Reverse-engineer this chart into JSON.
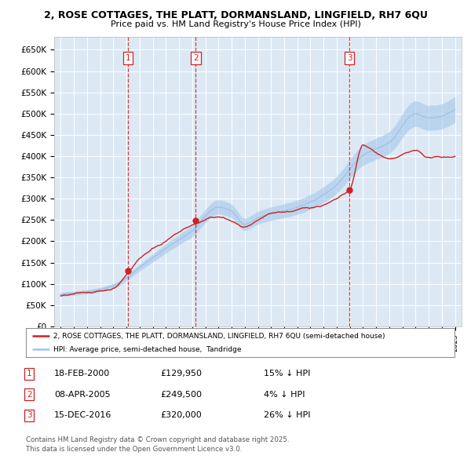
{
  "title1": "2, ROSE COTTAGES, THE PLATT, DORMANSLAND, LINGFIELD, RH7 6QU",
  "title2": "Price paid vs. HM Land Registry's House Price Index (HPI)",
  "background_color": "#ffffff",
  "plot_bg_color": "#dce9f5",
  "grid_color": "#ffffff",
  "hpi_color": "#a0c4e8",
  "price_color": "#cc2222",
  "vline_color": "#cc2222",
  "sale_dates": [
    2000.12,
    2005.27,
    2016.96
  ],
  "sale_prices": [
    129950,
    249500,
    320000
  ],
  "sale_labels": [
    "1",
    "2",
    "3"
  ],
  "legend_line1": "2, ROSE COTTAGES, THE PLATT, DORMANSLAND, LINGFIELD, RH7 6QU (semi-detached house)",
  "legend_line2": "HPI: Average price, semi-detached house,  Tandridge",
  "table_data": [
    [
      "1",
      "18-FEB-2000",
      "£129,950",
      "15% ↓ HPI"
    ],
    [
      "2",
      "08-APR-2005",
      "£249,500",
      "4% ↓ HPI"
    ],
    [
      "3",
      "15-DEC-2016",
      "£320,000",
      "26% ↓ HPI"
    ]
  ],
  "footnote": "Contains HM Land Registry data © Crown copyright and database right 2025.\nThis data is licensed under the Open Government Licence v3.0.",
  "ylim": [
    0,
    680000
  ],
  "xlim": [
    1994.5,
    2025.5
  ],
  "yticks": [
    0,
    50000,
    100000,
    150000,
    200000,
    250000,
    300000,
    350000,
    400000,
    450000,
    500000,
    550000,
    600000,
    650000
  ],
  "ytick_labels": [
    "£0",
    "£50K",
    "£100K",
    "£150K",
    "£200K",
    "£250K",
    "£300K",
    "£350K",
    "£400K",
    "£450K",
    "£500K",
    "£550K",
    "£600K",
    "£650K"
  ],
  "hpi_control_x": [
    1995,
    1997,
    1999,
    2001,
    2003,
    2005,
    2007,
    2008,
    2009,
    2010,
    2012,
    2014,
    2016,
    2018,
    2020,
    2022,
    2023,
    2025
  ],
  "hpi_control_y": [
    75000,
    83000,
    97000,
    140000,
    185000,
    225000,
    280000,
    270000,
    240000,
    255000,
    270000,
    290000,
    330000,
    400000,
    430000,
    500000,
    490000,
    510000
  ],
  "price_control_x": [
    1995,
    1997,
    1999,
    2000.12,
    2001,
    2003,
    2005.27,
    2007,
    2008,
    2009,
    2011,
    2013,
    2016.96,
    2018,
    2020,
    2022,
    2023,
    2025
  ],
  "price_control_y": [
    72000,
    79000,
    92000,
    129950,
    165000,
    210000,
    249500,
    265000,
    255000,
    240000,
    265000,
    275000,
    320000,
    425000,
    395000,
    410000,
    395000,
    400000
  ]
}
